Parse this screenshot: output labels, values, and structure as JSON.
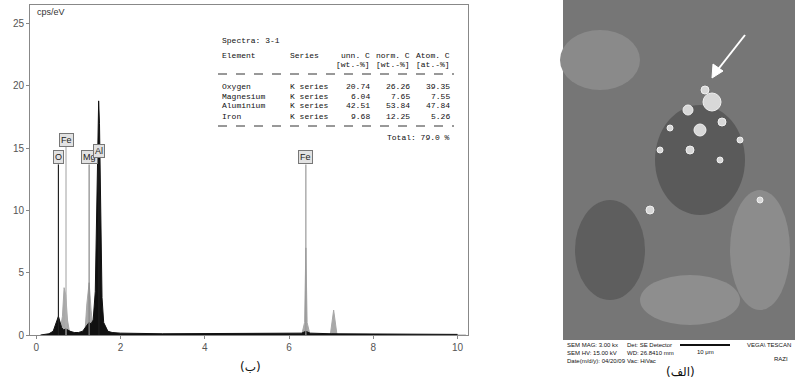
{
  "chart_data": {
    "type": "area",
    "y_label": "cps/eV",
    "panel_label": "(ب)",
    "xlim": [
      -0.15,
      10.25
    ],
    "xticks": [
      0,
      2,
      4,
      6,
      8,
      10
    ],
    "ylim": [
      0,
      26.5
    ],
    "yticks": [
      0,
      5,
      10,
      15,
      20,
      25
    ],
    "grid": false,
    "series": [
      {
        "color": "#a8a8a8",
        "x": [
          0.55,
          0.62,
          0.66,
          0.7,
          0.74,
          0.78,
          0.85,
          1.15,
          1.2,
          1.254,
          1.3,
          1.36,
          6.3,
          6.37,
          6.4,
          6.43,
          6.5,
          6.98,
          7.06,
          7.14,
          10.2
        ],
        "values": [
          0,
          1.5,
          3.8,
          3.2,
          1.2,
          0.4,
          0,
          0,
          2.5,
          4.2,
          2.0,
          0,
          0,
          1,
          7,
          1,
          0,
          0,
          2,
          0,
          0
        ]
      },
      {
        "color": "#111111",
        "x": [
          0.1,
          0.3,
          0.4,
          0.45,
          0.5,
          0.525,
          0.55,
          0.6,
          0.65,
          0.7,
          0.75,
          0.8,
          0.9,
          1.0,
          1.1,
          1.2,
          1.25,
          1.3,
          1.35,
          1.4,
          1.45,
          1.48,
          1.5,
          1.53,
          1.56,
          1.6,
          1.7,
          1.8,
          2.0,
          3,
          4,
          5,
          6,
          6.3,
          6.4,
          6.5,
          7.0,
          7.06,
          7.1,
          8,
          9,
          10
        ],
        "values": [
          0,
          0.1,
          0.3,
          0.8,
          1.4,
          1.5,
          1.2,
          0.6,
          0.4,
          0.5,
          0.4,
          0.3,
          0.2,
          0.2,
          0.3,
          0.8,
          1.0,
          0.9,
          1.2,
          3.5,
          12,
          18.8,
          17,
          9,
          3,
          1,
          0.3,
          0.2,
          0.15,
          0.1,
          0.1,
          0.1,
          0.1,
          0.15,
          0.3,
          0.15,
          0.1,
          0.1,
          0.1,
          0.1,
          0.05,
          0.05
        ]
      }
    ],
    "markers": [
      {
        "label": "O",
        "energy": 0.525,
        "height": 13.7,
        "color": "#222222"
      },
      {
        "label": "Fe",
        "energy": 0.705,
        "height": 15.1,
        "color": "#b0b0b0"
      },
      {
        "label": "Mg",
        "energy": 1.254,
        "height": 13.7,
        "color": "#888888"
      },
      {
        "label": "Al",
        "energy": 1.487,
        "height": 14.2,
        "color": "#222222"
      },
      {
        "label": "Fe",
        "energy": 6.4,
        "height": 13.7,
        "color": "#999999"
      }
    ],
    "table": {
      "title": "Spectra: 3-1",
      "header": [
        [
          "Element",
          "Series",
          "unn. C",
          "norm. C",
          "Atom. C"
        ],
        [
          "",
          "",
          "[wt.-%]",
          "[wt.-%]",
          "[at.-%]"
        ]
      ],
      "rows": [
        [
          "Oxygen",
          "K series",
          20.74,
          26.26,
          39.35
        ],
        [
          "Magnesium",
          "K series",
          6.04,
          7.65,
          7.55
        ],
        [
          "Aluminium",
          "K series",
          42.51,
          53.84,
          47.84
        ],
        [
          "Iron",
          "K series",
          9.68,
          12.25,
          5.26
        ]
      ],
      "total": "Total: 79.0 %"
    }
  },
  "image_panel": {
    "panel_label": "(الف)",
    "info": {
      "mag": "SEM MAG: 3.00 kx",
      "det": "Det: SE Detector",
      "brand": "VEGA\\ TESCAN",
      "hv": "SEM HV: 15.00 kV",
      "wd": "WD: 26.8410 mm",
      "scale": "10 μm",
      "date": "Date(m/d/y): 04/20/09",
      "vac": "Vac: HiVac",
      "lab": "RAZI"
    }
  }
}
